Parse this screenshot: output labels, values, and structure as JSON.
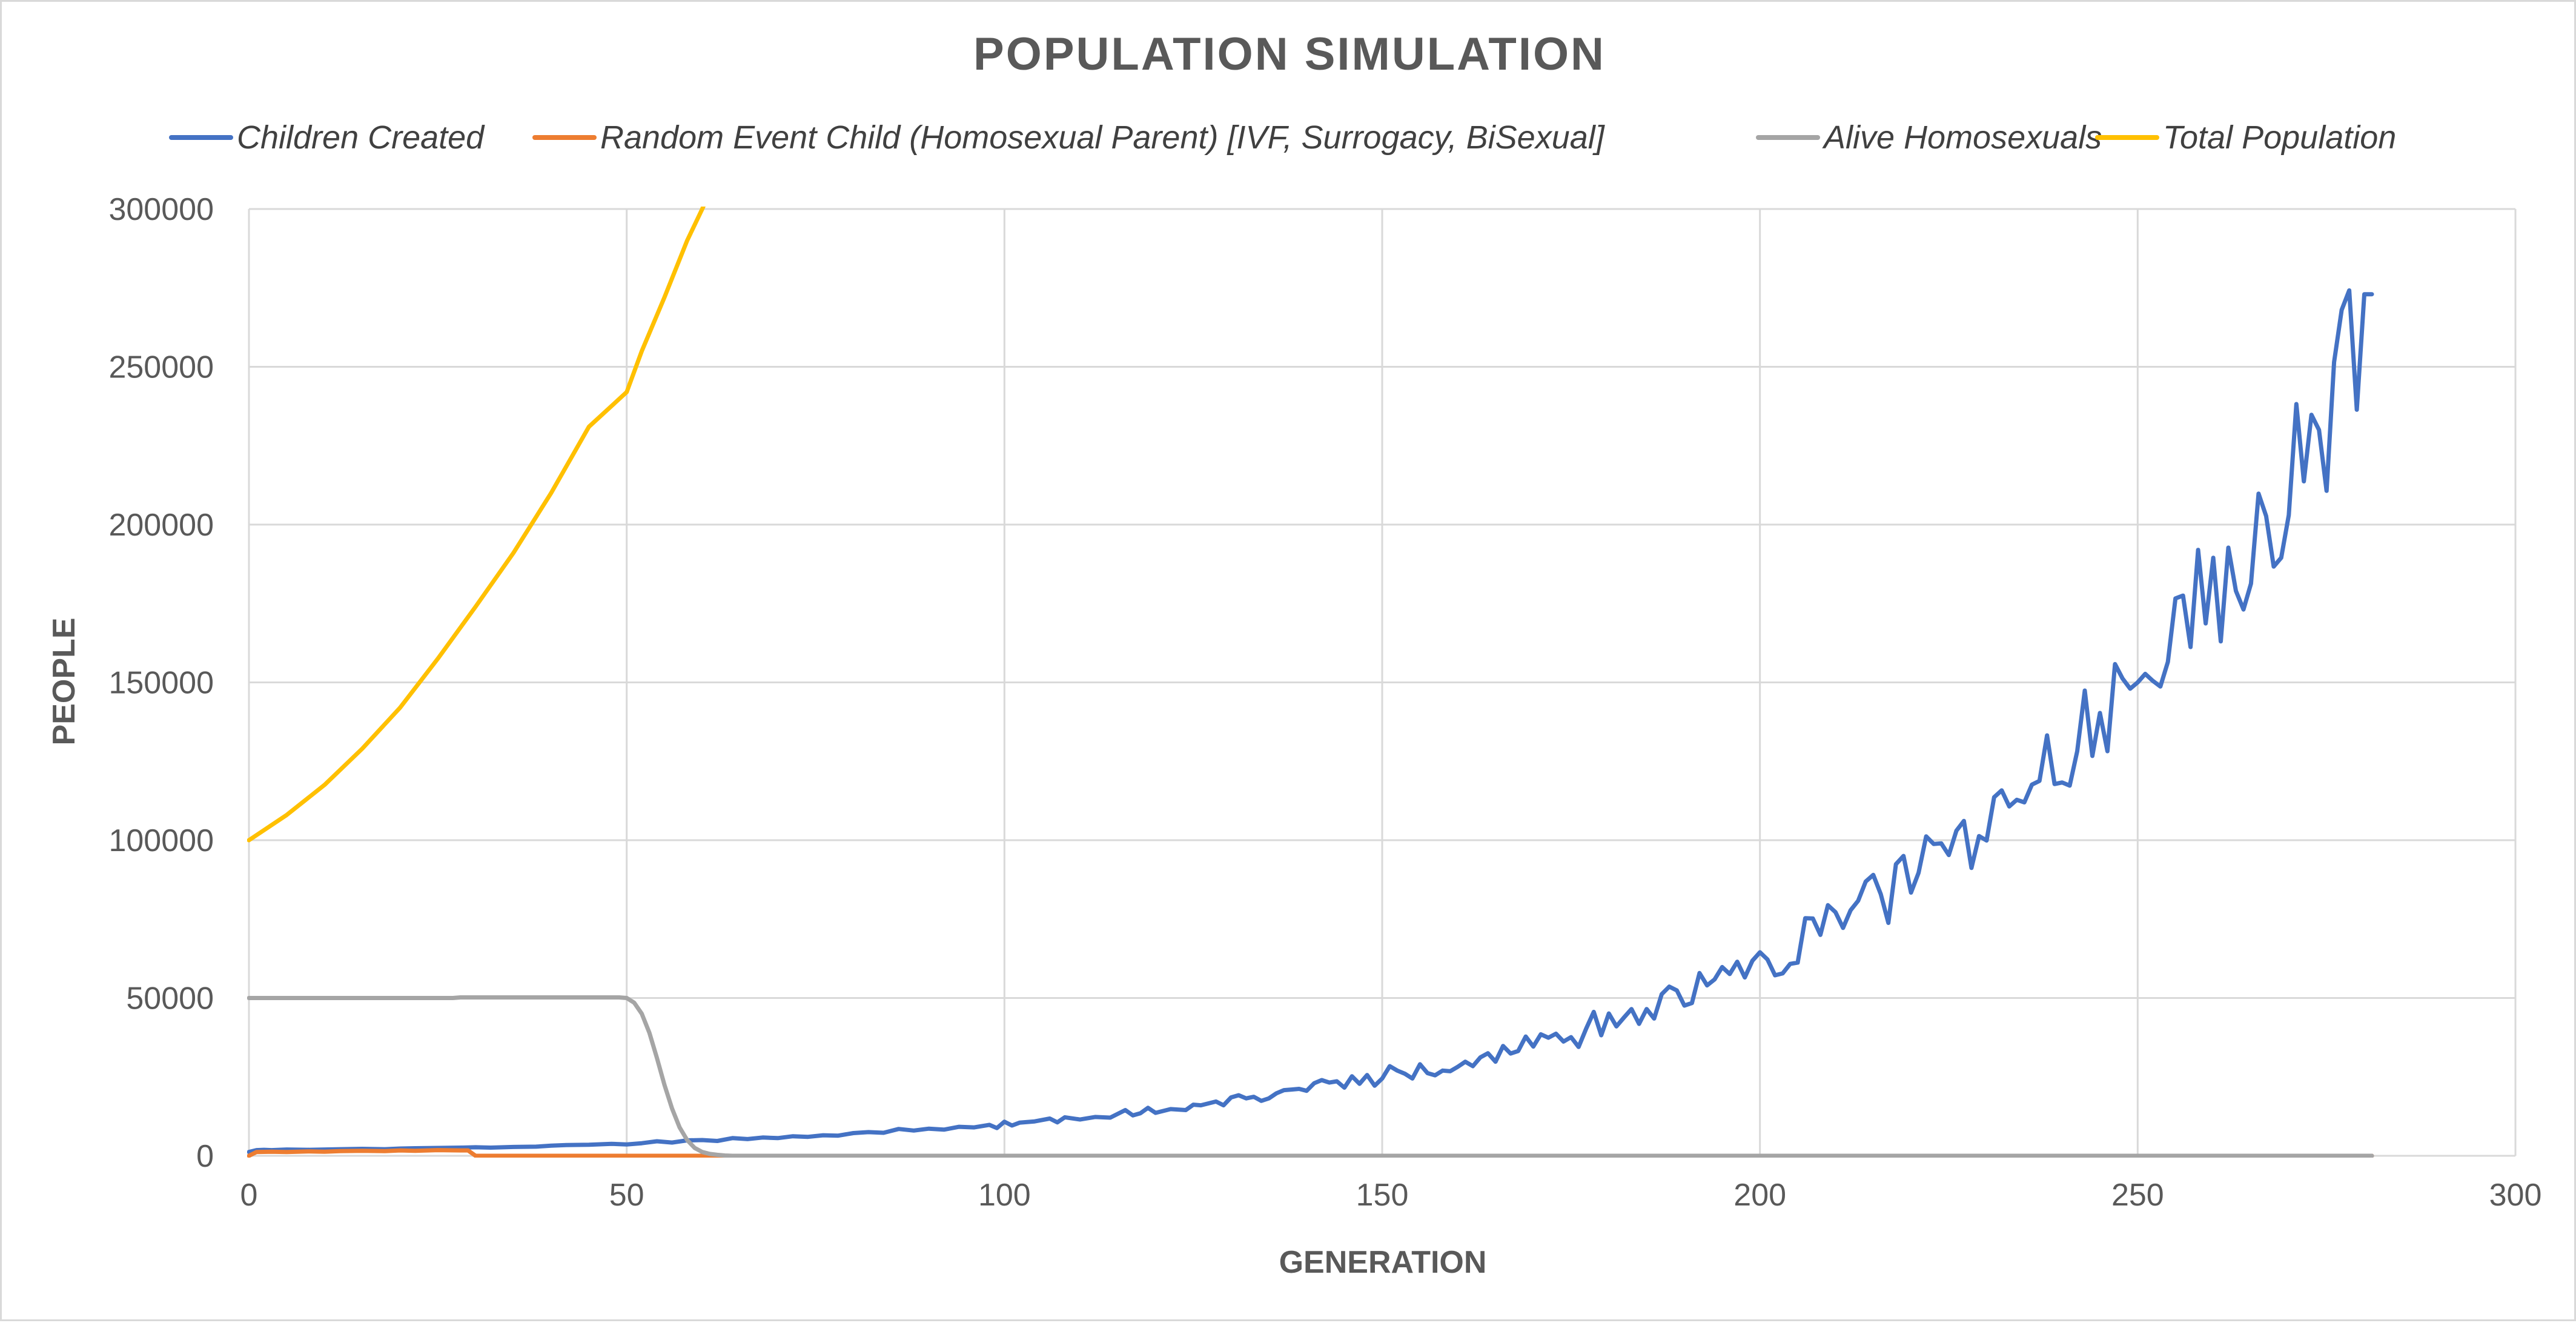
{
  "chart_data": {
    "type": "line",
    "title": "POPULATION SIMULATION",
    "xlabel": "GENERATION",
    "ylabel": "PEOPLE",
    "xlim": [
      0,
      300
    ],
    "ylim": [
      0,
      300000
    ],
    "x_ticks": [
      0,
      50,
      100,
      150,
      200,
      250,
      300
    ],
    "y_ticks": [
      0,
      50000,
      100000,
      150000,
      200000,
      250000,
      300000
    ],
    "grid": "both",
    "legend_position": "top",
    "series": [
      {
        "name": "Children Created",
        "color": "#4472C4",
        "points": [
          [
            0,
            1200
          ],
          [
            1,
            1800
          ],
          [
            2,
            1900
          ],
          [
            3,
            1800
          ],
          [
            5,
            2000
          ],
          [
            8,
            1900
          ],
          [
            10,
            2000
          ],
          [
            12,
            2100
          ],
          [
            15,
            2200
          ],
          [
            18,
            2100
          ],
          [
            20,
            2300
          ],
          [
            22,
            2400
          ],
          [
            25,
            2500
          ],
          [
            28,
            2600
          ],
          [
            30,
            2700
          ],
          [
            32,
            2600
          ],
          [
            35,
            2800
          ],
          [
            38,
            2900
          ],
          [
            40,
            3200
          ],
          [
            42,
            3400
          ],
          [
            45,
            3500
          ],
          [
            48,
            3800
          ],
          [
            50,
            3600
          ],
          [
            52,
            4000
          ],
          [
            54,
            4600
          ],
          [
            56,
            4200
          ],
          [
            58,
            4900
          ],
          [
            60,
            5000
          ],
          [
            62,
            4700
          ],
          [
            64,
            5600
          ],
          [
            66,
            5300
          ],
          [
            68,
            5800
          ],
          [
            70,
            5600
          ],
          [
            72,
            6200
          ],
          [
            74,
            6000
          ],
          [
            76,
            6500
          ],
          [
            78,
            6400
          ],
          [
            80,
            7200
          ],
          [
            82,
            7500
          ],
          [
            84,
            7300
          ],
          [
            86,
            8500
          ],
          [
            88,
            8000
          ],
          [
            90,
            8600
          ],
          [
            92,
            8300
          ],
          [
            94,
            9200
          ],
          [
            96,
            9000
          ],
          [
            98,
            9800
          ],
          [
            99,
            8800
          ],
          [
            100,
            10800
          ],
          [
            101,
            9600
          ],
          [
            102,
            10500
          ],
          [
            104,
            10900
          ],
          [
            106,
            11800
          ],
          [
            107,
            10600
          ],
          [
            108,
            12200
          ],
          [
            110,
            11500
          ],
          [
            112,
            12300
          ],
          [
            114,
            12100
          ],
          [
            116,
            14500
          ],
          [
            117,
            12800
          ],
          [
            118,
            13500
          ],
          [
            119,
            15200
          ],
          [
            120,
            13600
          ],
          [
            122,
            14800
          ],
          [
            124,
            14500
          ],
          [
            125,
            16200
          ],
          [
            126,
            16000
          ],
          [
            128,
            17200
          ],
          [
            129,
            16000
          ],
          [
            130,
            18500
          ],
          [
            131,
            19200
          ],
          [
            132,
            18200
          ],
          [
            133,
            18700
          ],
          [
            134,
            17400
          ],
          [
            135,
            18200
          ],
          [
            136,
            19800
          ],
          [
            137,
            20800
          ],
          [
            138,
            21000
          ],
          [
            139,
            21200
          ],
          [
            140,
            20600
          ],
          [
            141,
            23000
          ],
          [
            142,
            24000
          ],
          [
            143,
            23200
          ],
          [
            144,
            23600
          ],
          [
            145,
            21600
          ],
          [
            146,
            25200
          ],
          [
            147,
            22800
          ],
          [
            148,
            25600
          ],
          [
            149,
            22200
          ],
          [
            150,
            24500
          ],
          [
            151,
            28400
          ],
          [
            152,
            27000
          ],
          [
            153,
            26000
          ],
          [
            154,
            24500
          ],
          [
            155,
            29000
          ],
          [
            156,
            26200
          ],
          [
            157,
            25500
          ],
          [
            158,
            27000
          ],
          [
            159,
            26800
          ],
          [
            160,
            28200
          ],
          [
            161,
            29800
          ],
          [
            162,
            28400
          ],
          [
            163,
            31200
          ],
          [
            164,
            32500
          ],
          [
            165,
            29800
          ],
          [
            166,
            34800
          ],
          [
            167,
            32400
          ],
          [
            168,
            33200
          ],
          [
            169,
            37800
          ],
          [
            170,
            34600
          ],
          [
            171,
            38500
          ],
          [
            172,
            37400
          ],
          [
            173,
            38700
          ],
          [
            174,
            36200
          ],
          [
            175,
            37600
          ],
          [
            176,
            34500
          ],
          [
            177,
            40300
          ],
          [
            178,
            45600
          ],
          [
            179,
            38200
          ],
          [
            180,
            45100
          ],
          [
            181,
            41000
          ],
          [
            182,
            43800
          ],
          [
            183,
            46500
          ],
          [
            184,
            41800
          ],
          [
            185,
            46500
          ],
          [
            186,
            43500
          ],
          [
            187,
            51200
          ],
          [
            188,
            53600
          ],
          [
            189,
            52400
          ],
          [
            190,
            47600
          ],
          [
            191,
            48400
          ],
          [
            192,
            57900
          ],
          [
            193,
            54000
          ],
          [
            194,
            55900
          ],
          [
            195,
            59800
          ],
          [
            196,
            57600
          ],
          [
            197,
            61500
          ],
          [
            198,
            56500
          ],
          [
            199,
            61800
          ],
          [
            200,
            64500
          ],
          [
            201,
            62200
          ],
          [
            202,
            57200
          ],
          [
            203,
            57800
          ],
          [
            204,
            60800
          ],
          [
            205,
            61200
          ],
          [
            206,
            75300
          ],
          [
            207,
            75200
          ],
          [
            208,
            70000
          ],
          [
            209,
            79400
          ],
          [
            210,
            77200
          ],
          [
            211,
            72200
          ],
          [
            212,
            77800
          ],
          [
            213,
            80800
          ],
          [
            214,
            86900
          ],
          [
            215,
            89000
          ],
          [
            216,
            82900
          ],
          [
            217,
            73800
          ],
          [
            218,
            92400
          ],
          [
            219,
            95000
          ],
          [
            220,
            83400
          ],
          [
            221,
            89700
          ],
          [
            222,
            101200
          ],
          [
            223,
            98800
          ],
          [
            224,
            99000
          ],
          [
            225,
            95300
          ],
          [
            226,
            103000
          ],
          [
            227,
            106100
          ],
          [
            228,
            91200
          ],
          [
            229,
            101300
          ],
          [
            230,
            99900
          ],
          [
            231,
            113600
          ],
          [
            232,
            115800
          ],
          [
            233,
            110700
          ],
          [
            234,
            112800
          ],
          [
            235,
            112000
          ],
          [
            236,
            117600
          ],
          [
            237,
            118800
          ],
          [
            238,
            133200
          ],
          [
            239,
            117800
          ],
          [
            240,
            118300
          ],
          [
            241,
            117300
          ],
          [
            242,
            128200
          ],
          [
            243,
            147400
          ],
          [
            244,
            126700
          ],
          [
            245,
            140300
          ],
          [
            246,
            128200
          ],
          [
            247,
            155800
          ],
          [
            248,
            151200
          ],
          [
            249,
            148000
          ],
          [
            250,
            150000
          ],
          [
            251,
            152700
          ],
          [
            252,
            150500
          ],
          [
            253,
            148700
          ],
          [
            254,
            156500
          ],
          [
            255,
            176600
          ],
          [
            256,
            177500
          ],
          [
            257,
            161200
          ],
          [
            258,
            192000
          ],
          [
            259,
            168700
          ],
          [
            260,
            189500
          ],
          [
            261,
            163000
          ],
          [
            262,
            192700
          ],
          [
            263,
            179000
          ],
          [
            264,
            173100
          ],
          [
            265,
            181300
          ],
          [
            266,
            209800
          ],
          [
            267,
            202700
          ],
          [
            268,
            186700
          ],
          [
            269,
            189500
          ],
          [
            270,
            203000
          ],
          [
            271,
            238200
          ],
          [
            272,
            213700
          ],
          [
            273,
            234800
          ],
          [
            274,
            230000
          ],
          [
            275,
            210700
          ],
          [
            276,
            251500
          ],
          [
            277,
            268000
          ],
          [
            278,
            274200
          ],
          [
            279,
            236400
          ],
          [
            280,
            273000
          ],
          [
            281,
            273000
          ]
        ]
      },
      {
        "name": "Random Event Child (Homosexual Parent) [IVF, Surrogacy, BiSexual]",
        "color": "#ED7D31",
        "points": [
          [
            0,
            0
          ],
          [
            1,
            1200
          ],
          [
            3,
            1300
          ],
          [
            5,
            1200
          ],
          [
            8,
            1400
          ],
          [
            10,
            1300
          ],
          [
            12,
            1500
          ],
          [
            15,
            1600
          ],
          [
            18,
            1500
          ],
          [
            20,
            1700
          ],
          [
            22,
            1600
          ],
          [
            25,
            1800
          ],
          [
            28,
            1700
          ],
          [
            29,
            1700
          ],
          [
            30,
            0
          ],
          [
            281,
            0
          ]
        ]
      },
      {
        "name": "Alive Homosexuals",
        "color": "#A5A5A5",
        "points": [
          [
            0,
            50000
          ],
          [
            27,
            50000
          ],
          [
            28,
            50200
          ],
          [
            49,
            50200
          ],
          [
            50,
            50000
          ],
          [
            51,
            48500
          ],
          [
            52,
            45000
          ],
          [
            53,
            39000
          ],
          [
            54,
            31000
          ],
          [
            55,
            22500
          ],
          [
            56,
            15000
          ],
          [
            57,
            9000
          ],
          [
            58,
            5000
          ],
          [
            59,
            2500
          ],
          [
            60,
            1200
          ],
          [
            61,
            600
          ],
          [
            62,
            300
          ],
          [
            63,
            100
          ],
          [
            64,
            0
          ],
          [
            281,
            0
          ]
        ]
      },
      {
        "name": "Total Population",
        "color": "#FFC000",
        "points": [
          [
            0,
            100000
          ],
          [
            5,
            108000
          ],
          [
            10,
            117500
          ],
          [
            15,
            129000
          ],
          [
            20,
            142000
          ],
          [
            25,
            157500
          ],
          [
            30,
            174000
          ],
          [
            35,
            191000
          ],
          [
            40,
            210000
          ],
          [
            45,
            231000
          ],
          [
            50,
            242000
          ],
          [
            52,
            255000
          ],
          [
            55,
            272000
          ],
          [
            58,
            290000
          ],
          [
            60,
            300000
          ],
          [
            62,
            311000
          ]
        ]
      }
    ]
  }
}
